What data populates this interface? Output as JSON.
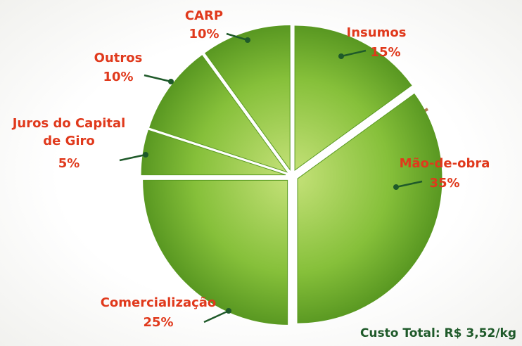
{
  "chart_data": {
    "type": "pie",
    "categories": [
      "Insumos",
      "Mão-de-obra",
      "Comercialização",
      "Juros do Capital de Giro",
      "Outros",
      "CARP"
    ],
    "values": [
      15,
      35,
      25,
      5,
      10,
      10
    ],
    "value_labels": [
      "15%",
      "35%",
      "25%",
      "5%",
      "10%",
      "10%"
    ],
    "color": "#7cb82f",
    "note": "Custo Total: R$ 3,52/kg"
  }
}
